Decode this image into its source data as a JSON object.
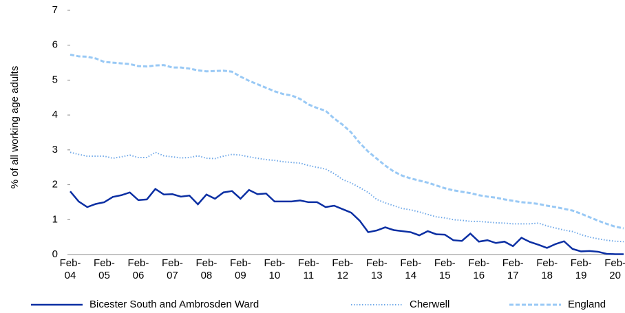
{
  "chart_data": {
    "type": "line",
    "y_label": "% of all working age adults",
    "categories": [
      "Feb-04",
      null,
      null,
      null,
      "Feb-05",
      null,
      null,
      null,
      "Feb-06",
      null,
      null,
      null,
      "Feb-07",
      null,
      null,
      null,
      "Feb-08",
      null,
      null,
      null,
      "Feb-09",
      null,
      null,
      null,
      "Feb-10",
      null,
      null,
      null,
      "Feb-11",
      null,
      null,
      null,
      "Feb-12",
      null,
      null,
      null,
      "Feb-13",
      null,
      null,
      null,
      "Feb-14",
      null,
      null,
      null,
      "Feb-15",
      null,
      null,
      null,
      "Feb-16",
      null,
      null,
      null,
      "Feb-17",
      null,
      null,
      null,
      "Feb-18",
      null,
      null,
      null,
      "Feb-19",
      null,
      null,
      null,
      "Feb-20",
      null
    ],
    "ylim": [
      0,
      7
    ],
    "yticks": [
      0,
      1,
      2,
      3,
      4,
      5,
      6,
      7
    ],
    "legend": "bottom",
    "series": [
      {
        "name": "Bicester South and Ambrosden Ward",
        "color": "#0b2fa3",
        "style": "solid",
        "values": [
          1.81,
          1.52,
          1.36,
          1.45,
          1.5,
          1.65,
          1.7,
          1.78,
          1.56,
          1.58,
          1.88,
          1.72,
          1.73,
          1.66,
          1.69,
          1.44,
          1.72,
          1.6,
          1.78,
          1.82,
          1.6,
          1.85,
          1.73,
          1.75,
          1.52,
          1.52,
          1.52,
          1.55,
          1.5,
          1.5,
          1.36,
          1.4,
          1.3,
          1.2,
          0.97,
          0.64,
          0.69,
          0.78,
          0.7,
          0.67,
          0.64,
          0.55,
          0.67,
          0.58,
          0.57,
          0.41,
          0.39,
          0.6,
          0.37,
          0.41,
          0.33,
          0.37,
          0.24,
          0.48,
          0.36,
          0.28,
          0.19,
          0.3,
          0.38,
          0.16,
          0.09,
          0.1,
          0.08,
          0.02,
          0.01,
          0.01
        ]
      },
      {
        "name": "Cherwell",
        "color": "#6fa8e8",
        "style": "dotted",
        "values": [
          2.93,
          2.87,
          2.82,
          2.82,
          2.82,
          2.76,
          2.8,
          2.85,
          2.78,
          2.78,
          2.93,
          2.83,
          2.8,
          2.77,
          2.78,
          2.83,
          2.76,
          2.75,
          2.82,
          2.87,
          2.85,
          2.8,
          2.76,
          2.72,
          2.7,
          2.66,
          2.64,
          2.62,
          2.55,
          2.5,
          2.45,
          2.32,
          2.15,
          2.05,
          1.92,
          1.78,
          1.58,
          1.48,
          1.4,
          1.32,
          1.28,
          1.22,
          1.15,
          1.08,
          1.05,
          1.0,
          0.98,
          0.95,
          0.95,
          0.93,
          0.91,
          0.9,
          0.88,
          0.88,
          0.88,
          0.9,
          0.82,
          0.76,
          0.7,
          0.66,
          0.57,
          0.5,
          0.45,
          0.41,
          0.38,
          0.37
        ]
      },
      {
        "name": "England",
        "color": "#99c9f5",
        "style": "dashed",
        "values": [
          5.73,
          5.68,
          5.67,
          5.62,
          5.52,
          5.5,
          5.48,
          5.46,
          5.4,
          5.39,
          5.42,
          5.43,
          5.36,
          5.36,
          5.33,
          5.28,
          5.25,
          5.26,
          5.27,
          5.24,
          5.1,
          4.98,
          4.88,
          4.78,
          4.68,
          4.6,
          4.56,
          4.46,
          4.3,
          4.2,
          4.12,
          3.9,
          3.72,
          3.5,
          3.2,
          2.95,
          2.75,
          2.55,
          2.38,
          2.26,
          2.18,
          2.12,
          2.06,
          1.98,
          1.9,
          1.84,
          1.8,
          1.76,
          1.7,
          1.66,
          1.63,
          1.58,
          1.54,
          1.5,
          1.48,
          1.45,
          1.4,
          1.36,
          1.31,
          1.26,
          1.17,
          1.07,
          0.97,
          0.88,
          0.8,
          0.75
        ]
      }
    ]
  }
}
